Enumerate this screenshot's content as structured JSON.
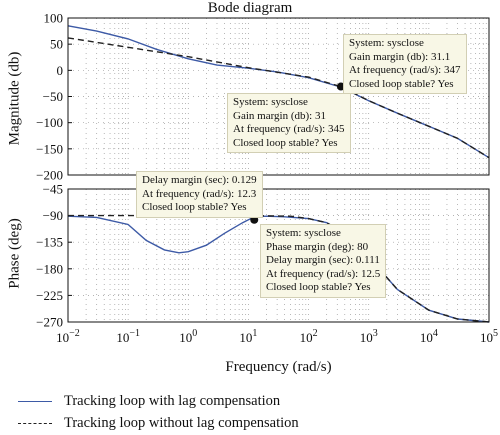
{
  "chart_data": {
    "type": "line",
    "title": "Bode diagram",
    "x_scale": "log",
    "xlabel": "Frequency (rad/s)",
    "xlim": [
      0.01,
      100000
    ],
    "x_ticks": [
      {
        "base": "10",
        "exp": "−2"
      },
      {
        "base": "10",
        "exp": "−1"
      },
      {
        "base": "10",
        "exp": "0"
      },
      {
        "base": "10",
        "exp": "1"
      },
      {
        "base": "10",
        "exp": "2"
      },
      {
        "base": "10",
        "exp": "3"
      },
      {
        "base": "10",
        "exp": "4"
      },
      {
        "base": "10",
        "exp": "5"
      }
    ],
    "grid": true,
    "magnitude": {
      "ylabel": "Magnitude (db)",
      "ylim": [
        -200,
        100
      ],
      "y_ticks": [
        "100",
        "50",
        "0",
        "−50",
        "−100",
        "−150",
        "−200"
      ],
      "series": [
        {
          "name": "Tracking loop with lag compensation",
          "style": "solid",
          "color": "#3d5aa6",
          "x": [
            0.01,
            0.03,
            0.1,
            0.3,
            1,
            3,
            10,
            30,
            100,
            345,
            1000,
            3000,
            10000,
            30000,
            100000
          ],
          "y": [
            85,
            75,
            60,
            40,
            22,
            10,
            4,
            -3,
            -14,
            -32,
            -58,
            -82,
            -107,
            -130,
            -167
          ]
        },
        {
          "name": "Tracking loop without lag compensation",
          "style": "dashed",
          "color": "#222222",
          "x": [
            0.01,
            0.1,
            1,
            10,
            100,
            345,
            1000,
            3000,
            10000,
            30000,
            100000
          ],
          "y": [
            62,
            44,
            26,
            5,
            -13,
            -31,
            -58,
            -82,
            -107,
            -130,
            -167
          ]
        }
      ]
    },
    "phase": {
      "ylabel": "Phase (deg)",
      "ylim": [
        -270,
        -45
      ],
      "y_ticks": [
        "−45",
        "−90",
        "−135",
        "−180",
        "−225",
        "−270"
      ],
      "series": [
        {
          "name": "Tracking loop with lag compensation",
          "style": "solid",
          "color": "#3d5aa6",
          "x": [
            0.01,
            0.03,
            0.1,
            0.2,
            0.4,
            0.7,
            1,
            2,
            4,
            8,
            12.5,
            20,
            40,
            100,
            200,
            400,
            1000,
            3000,
            10000,
            30000,
            100000
          ],
          "y": [
            -91,
            -93,
            -105,
            -132,
            -148,
            -153,
            -151,
            -140,
            -120,
            -102,
            -92,
            -91,
            -92,
            -95,
            -102,
            -120,
            -160,
            -215,
            -250,
            -265,
            -270
          ]
        },
        {
          "name": "Tracking loop without lag compensation",
          "style": "dashed",
          "color": "#222222",
          "x": [
            0.01,
            1,
            10,
            50,
            100,
            200,
            400,
            1000,
            3000,
            10000,
            30000,
            100000
          ],
          "y": [
            -90,
            -90,
            -90,
            -91,
            -95,
            -102,
            -120,
            -160,
            -215,
            -250,
            -265,
            -270
          ]
        }
      ]
    },
    "markers": [
      {
        "panel": "magnitude",
        "x": 345,
        "y": -31
      },
      {
        "panel": "phase",
        "x": 12.3,
        "y": -88
      },
      {
        "panel": "phase",
        "x": 12.5,
        "y": -97
      }
    ],
    "annotations": [
      {
        "id": "a1",
        "lines": [
          "System: sysclose",
          "Gain margin (db): 31.1",
          "At frequency (rad/s): 347",
          "Closed loop stable? Yes"
        ]
      },
      {
        "id": "a2",
        "lines": [
          "System: sysclose",
          "Gain margin (db): 31",
          "At frequency (rad/s): 345",
          "Closed loop stable? Yes"
        ]
      },
      {
        "id": "a3",
        "lines": [
          "Delay margin (sec): 0.129",
          "At frequency (rad/s): 12.3",
          "Closed loop stable? Yes"
        ]
      },
      {
        "id": "a4",
        "lines": [
          "System: sysclose",
          "Phase margin (deg): 80",
          "Delay margin (sec): 0.111",
          "At frequency (rad/s): 12.5",
          "Closed loop stable? Yes"
        ]
      }
    ],
    "legend": [
      {
        "label": "Tracking loop with lag compensation",
        "style": "solid",
        "color": "#3d5aa6"
      },
      {
        "label": "Tracking loop without lag compensation",
        "style": "dashed",
        "color": "#222222"
      }
    ]
  }
}
